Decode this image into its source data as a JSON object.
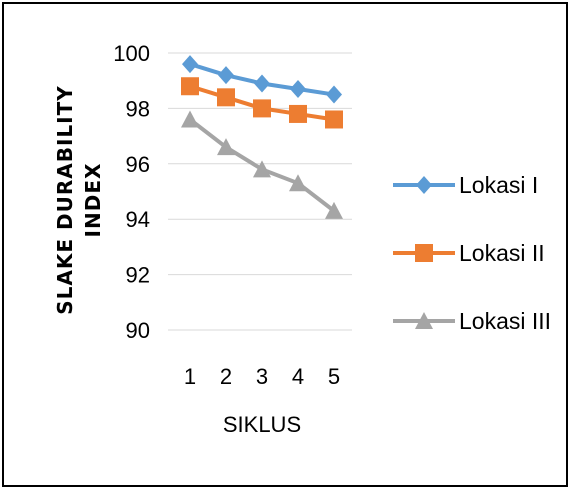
{
  "chart_data": {
    "type": "line",
    "xlabel": "SIKLUS",
    "ylabel_lines": [
      "SLAKE DURABILITY",
      "INDEX"
    ],
    "categories": [
      "1",
      "2",
      "3",
      "4",
      "5"
    ],
    "ylim": [
      90,
      100
    ],
    "yticks": [
      "90",
      "92",
      "94",
      "96",
      "98",
      "100"
    ],
    "grid": true,
    "legend_position": "right",
    "series": [
      {
        "name": "Lokasi I",
        "values": [
          99.6,
          99.2,
          98.9,
          98.7,
          98.5
        ],
        "color": "#5B9BD5",
        "marker": "diamond"
      },
      {
        "name": "Lokasi II",
        "values": [
          98.8,
          98.4,
          98.0,
          97.8,
          97.6
        ],
        "color": "#ED7D31",
        "marker": "square"
      },
      {
        "name": "Lokasi III",
        "values": [
          97.6,
          96.6,
          95.8,
          95.3,
          94.3
        ],
        "color": "#A5A5A5",
        "marker": "triangle"
      }
    ]
  }
}
